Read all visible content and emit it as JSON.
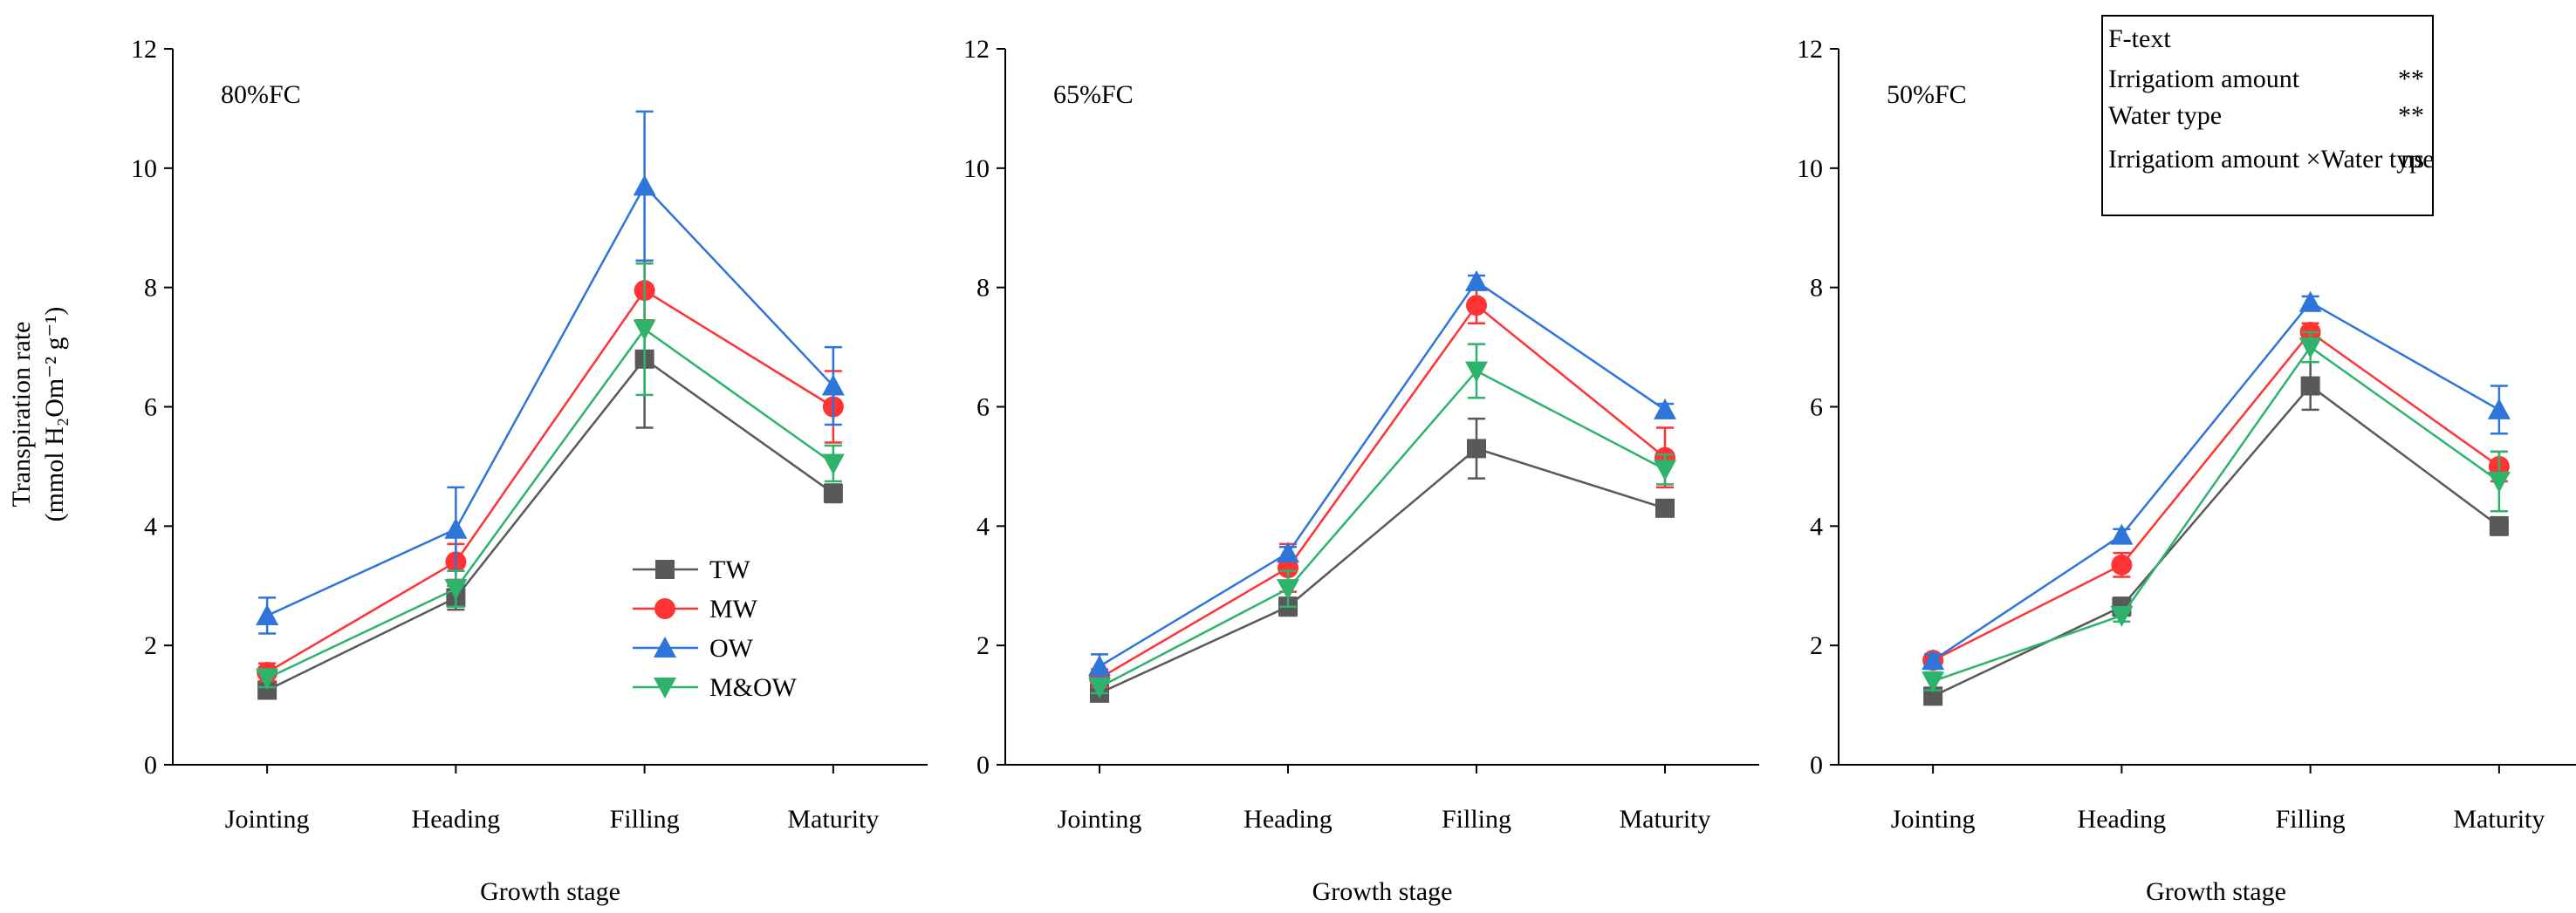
{
  "chart_data": [
    {
      "type": "line",
      "panel_label": "80%FC",
      "categories": [
        "Jointing",
        "Heading",
        "Filling",
        "Maturity"
      ],
      "xlabel": "Growth stage",
      "ylabel_line1": "Transpiration rate",
      "ylabel_line2": "(mmol H₂Om⁻² g⁻¹)",
      "ylim": [
        0,
        12
      ],
      "yticks": [
        "0",
        "2",
        "4",
        "6",
        "8",
        "10",
        "12"
      ],
      "series": [
        {
          "name": "TW",
          "color": "#595959",
          "marker": "square",
          "values": [
            1.25,
            2.8,
            6.8,
            4.55
          ],
          "err": [
            0.1,
            0.2,
            1.15,
            0.15
          ]
        },
        {
          "name": "MW",
          "color": "#ff3333",
          "marker": "circle",
          "values": [
            1.55,
            3.4,
            7.95,
            6.0
          ],
          "err": [
            0.15,
            0.3,
            0.5,
            0.6
          ]
        },
        {
          "name": "OW",
          "color": "#2e75d9",
          "marker": "triangle-up",
          "values": [
            2.5,
            3.95,
            9.7,
            6.35
          ],
          "err": [
            0.3,
            0.7,
            1.25,
            0.65
          ]
        },
        {
          "name": "M&OW",
          "color": "#2db36b",
          "marker": "triangle-down",
          "values": [
            1.45,
            2.95,
            7.3,
            5.05
          ],
          "err": [
            0.15,
            0.3,
            1.1,
            0.3
          ]
        }
      ]
    },
    {
      "type": "line",
      "panel_label": "65%FC",
      "categories": [
        "Jointing",
        "Heading",
        "Filling",
        "Maturity"
      ],
      "xlabel": "Growth stage",
      "ylim": [
        0,
        12
      ],
      "yticks": [
        "0",
        "2",
        "4",
        "6",
        "8",
        "10",
        "12"
      ],
      "series": [
        {
          "name": "TW",
          "color": "#595959",
          "marker": "square",
          "values": [
            1.2,
            2.65,
            5.3,
            4.3
          ],
          "err": [
            0.1,
            0.15,
            0.5,
            0.1
          ]
        },
        {
          "name": "MW",
          "color": "#ff3333",
          "marker": "circle",
          "values": [
            1.45,
            3.3,
            7.7,
            5.15
          ],
          "err": [
            0.15,
            0.4,
            0.3,
            0.5
          ]
        },
        {
          "name": "OW",
          "color": "#2e75d9",
          "marker": "triangle-up",
          "values": [
            1.65,
            3.55,
            8.1,
            5.95
          ],
          "err": [
            0.2,
            0.1,
            0.1,
            0.1
          ]
        },
        {
          "name": "M&OW",
          "color": "#2db36b",
          "marker": "triangle-down",
          "values": [
            1.3,
            2.95,
            6.6,
            4.95
          ],
          "err": [
            0.1,
            0.3,
            0.45,
            0.25
          ]
        }
      ]
    },
    {
      "type": "line",
      "panel_label": "50%FC",
      "categories": [
        "Jointing",
        "Heading",
        "Filling",
        "Maturity"
      ],
      "xlabel": "Growth stage",
      "ylim": [
        0,
        12
      ],
      "yticks": [
        "0",
        "2",
        "4",
        "6",
        "8",
        "10",
        "12"
      ],
      "series": [
        {
          "name": "TW",
          "color": "#595959",
          "marker": "square",
          "values": [
            1.15,
            2.65,
            6.35,
            4.0
          ],
          "err": [
            0.1,
            0.15,
            0.4,
            0.15
          ]
        },
        {
          "name": "MW",
          "color": "#ff3333",
          "marker": "circle",
          "values": [
            1.75,
            3.35,
            7.25,
            5.0
          ],
          "err": [
            0.1,
            0.2,
            0.15,
            0.25
          ]
        },
        {
          "name": "OW",
          "color": "#2e75d9",
          "marker": "triangle-up",
          "values": [
            1.75,
            3.85,
            7.75,
            5.95
          ],
          "err": [
            0.1,
            0.1,
            0.1,
            0.4
          ]
        },
        {
          "name": "M&OW",
          "color": "#2db36b",
          "marker": "triangle-down",
          "values": [
            1.4,
            2.5,
            7.0,
            4.75
          ],
          "err": [
            0.15,
            0.1,
            0.25,
            0.5
          ]
        }
      ]
    }
  ],
  "legend": {
    "entries": [
      "TW",
      "MW",
      "OW",
      "M&OW"
    ]
  },
  "ftext_box": {
    "title": "F-text",
    "rows": [
      {
        "label": "Irrigatiom amount",
        "value": "**"
      },
      {
        "label": "Water type",
        "value": "**"
      },
      {
        "label": "Irrigatiom amount ×Water type",
        "value": "ns"
      }
    ]
  }
}
